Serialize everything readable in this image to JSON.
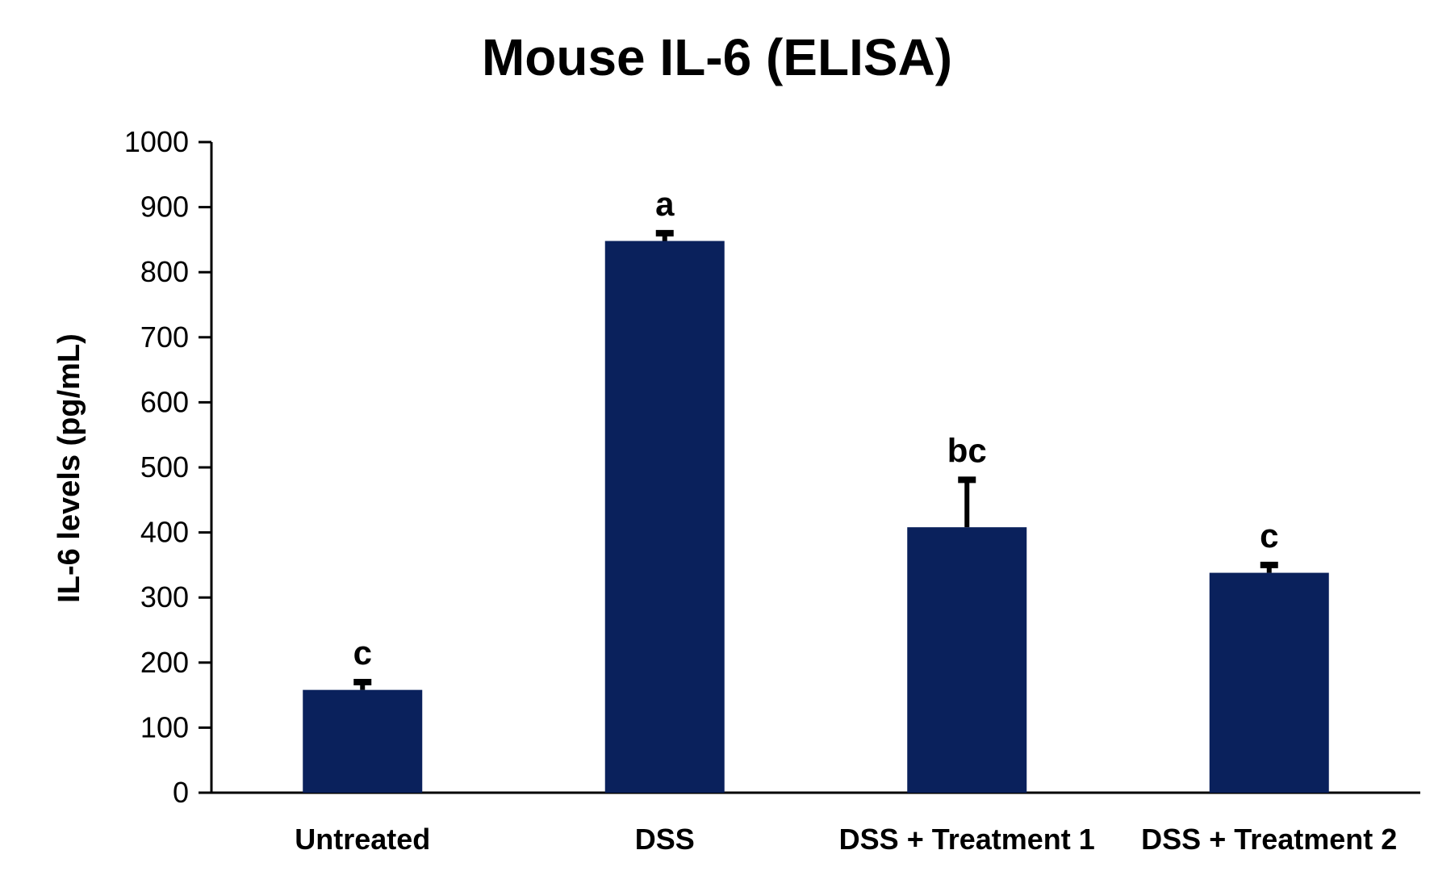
{
  "chart_data": {
    "type": "bar",
    "title": "Mouse IL-6 (ELISA)",
    "xlabel": "",
    "ylabel": "IL-6 levels (pg/mL)",
    "ylim": [
      0,
      1000
    ],
    "yticks": [
      0,
      100,
      200,
      300,
      400,
      500,
      600,
      700,
      800,
      900,
      1000
    ],
    "categories": [
      "Untreated",
      "DSS",
      "DSS + Treatment 1",
      "DSS + Treatment 2"
    ],
    "values": [
      158,
      848,
      408,
      338
    ],
    "error": [
      12,
      12,
      73,
      12
    ],
    "significance": [
      "c",
      "a",
      "bc",
      "c"
    ],
    "bar_color": "#0a215c",
    "grid": false,
    "legend": "none"
  }
}
